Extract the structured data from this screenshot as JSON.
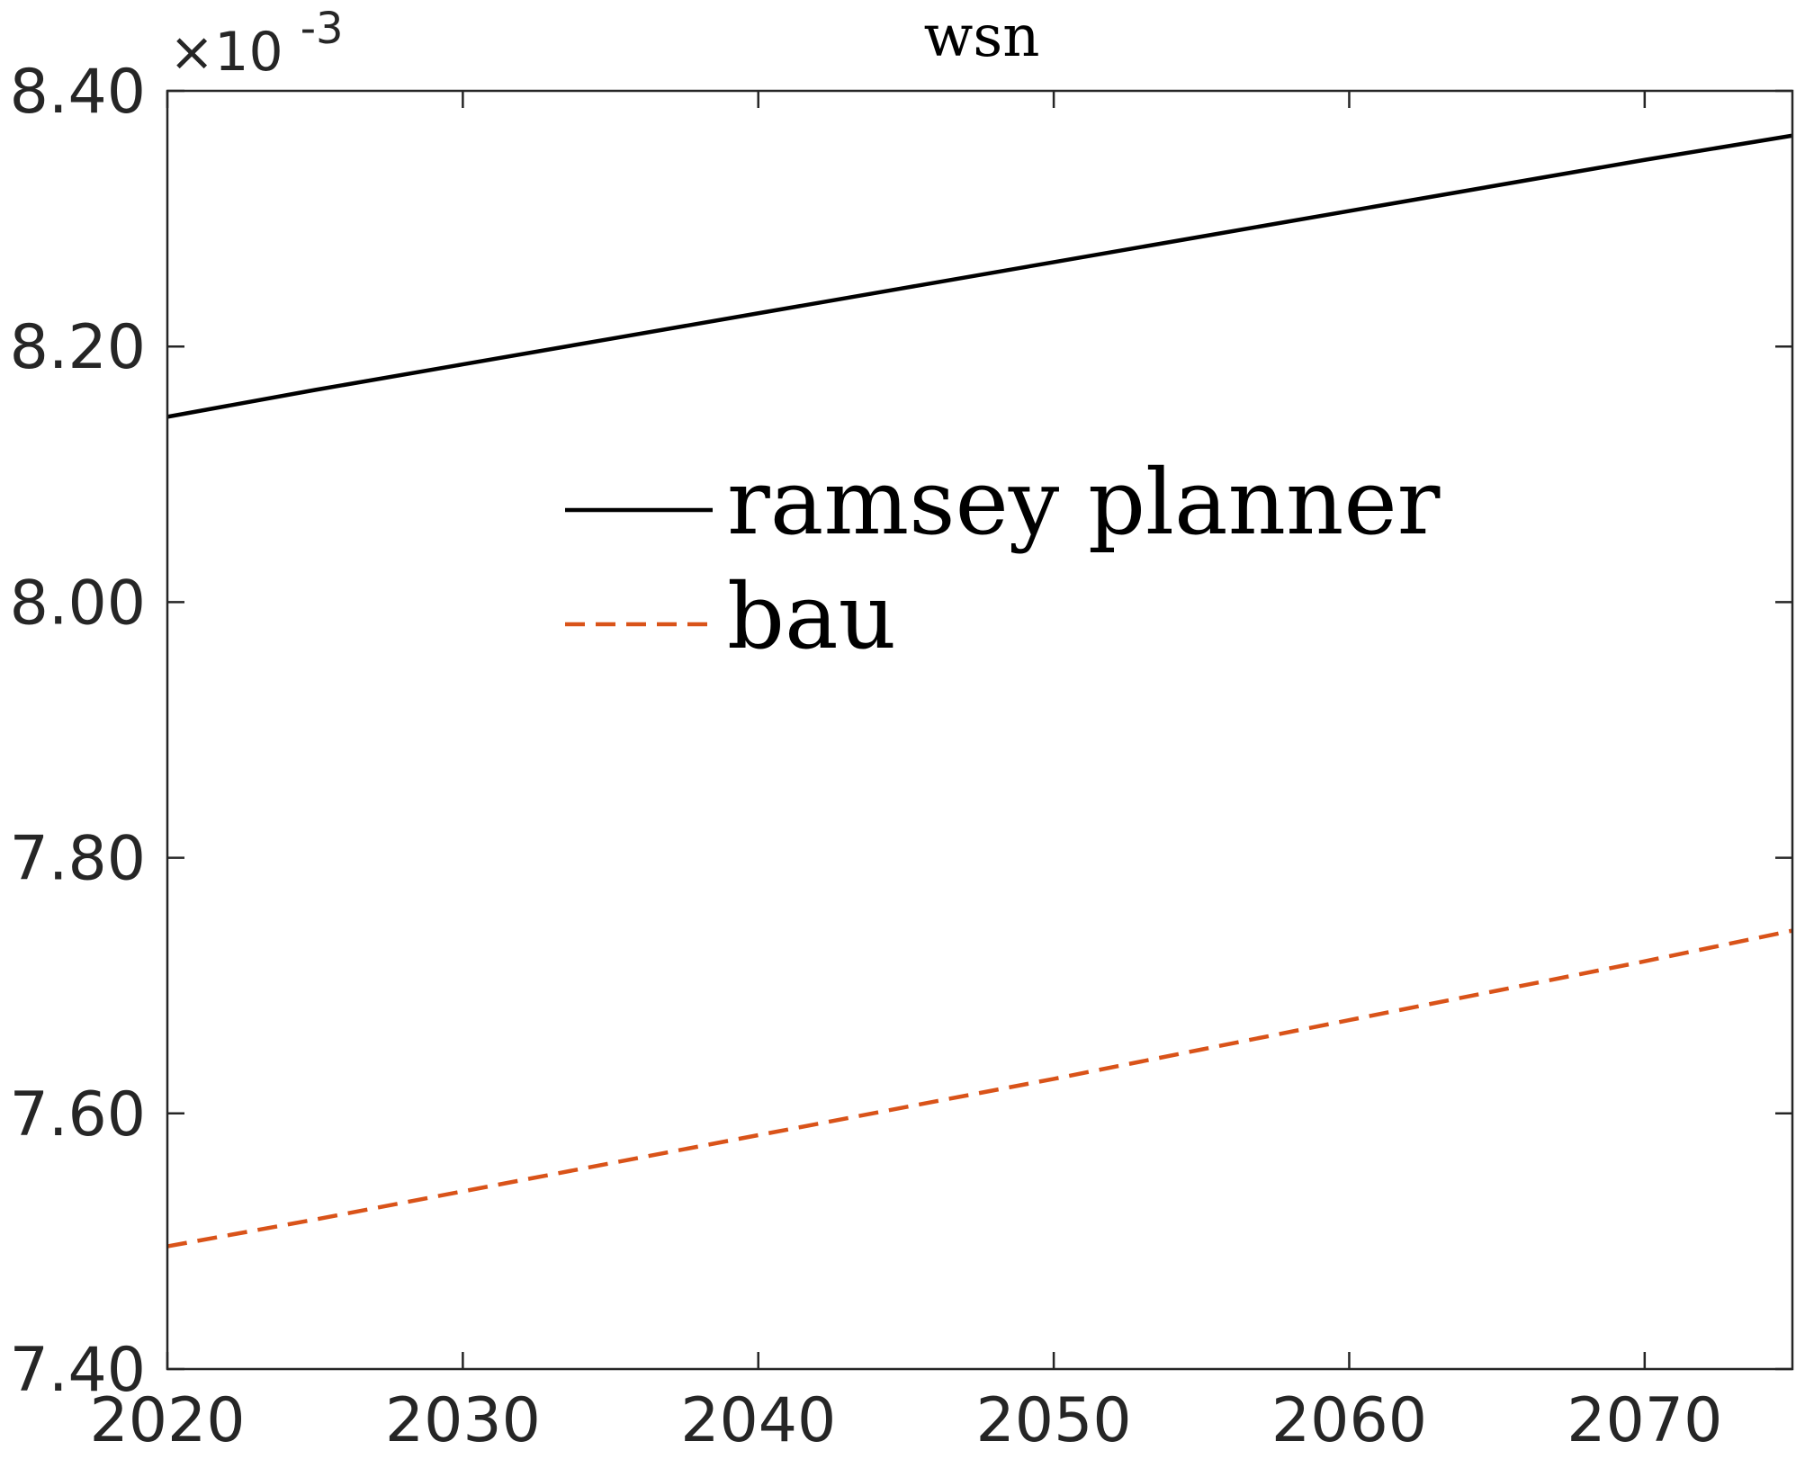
{
  "chart_data": {
    "type": "line",
    "title": "wsn",
    "xlabel": "",
    "ylabel": "",
    "x": [
      2020,
      2025,
      2030,
      2035,
      2040,
      2045,
      2050,
      2055,
      2060,
      2065,
      2070,
      2075
    ],
    "xlim": [
      2020,
      2075
    ],
    "ylim": [
      7.4,
      8.4
    ],
    "y_multiplier": {
      "base": "×10",
      "exponent": "-3"
    },
    "x_ticks": [
      2020,
      2030,
      2040,
      2050,
      2060,
      2070
    ],
    "x_tick_labels": [
      "2020",
      "2030",
      "2040",
      "2050",
      "2060",
      "2070"
    ],
    "y_ticks": [
      7.4,
      7.6,
      7.8,
      8.0,
      8.2,
      8.4
    ],
    "y_tick_labels": [
      "7.40",
      "7.60",
      "7.80",
      "8.00",
      "8.20",
      "8.40"
    ],
    "grid": false,
    "legend_position": "center",
    "series": [
      {
        "name": "ramsey planner",
        "color": "#000000",
        "dash": "solid",
        "values": [
          8.145,
          8.166,
          8.186,
          8.206,
          8.226,
          8.246,
          8.266,
          8.286,
          8.306,
          8.326,
          8.346,
          8.365
        ]
      },
      {
        "name": "bau",
        "color": "#D95319",
        "dash": "dashed",
        "values": [
          7.496,
          7.517,
          7.539,
          7.561,
          7.583,
          7.605,
          7.627,
          7.65,
          7.673,
          7.696,
          7.719,
          7.743
        ]
      }
    ]
  }
}
